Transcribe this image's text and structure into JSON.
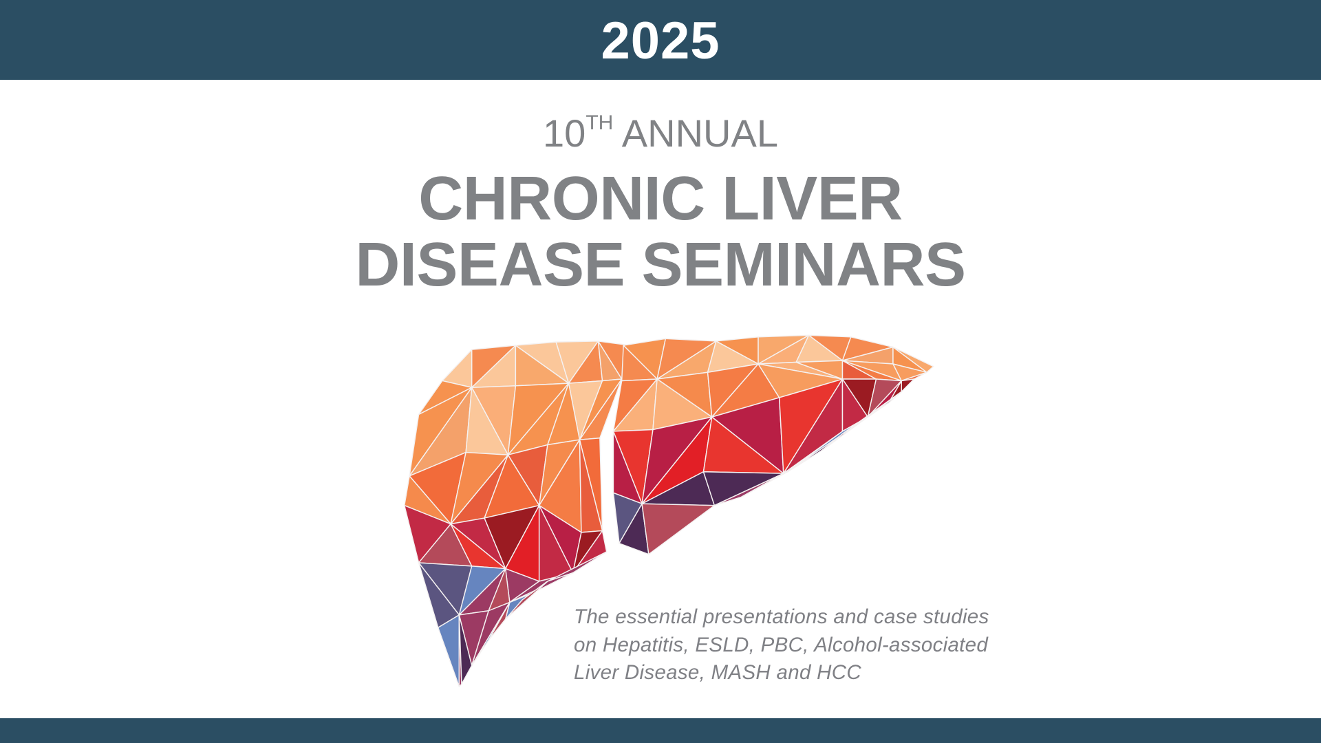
{
  "header": {
    "year": "2025"
  },
  "title": {
    "edition_number": "10",
    "edition_suffix": "TH",
    "edition_word": "ANNUAL",
    "line1": "CHRONIC LIVER",
    "line2": "DISEASE SEMINARS"
  },
  "illustration": {
    "icon": "low-poly-liver-icon"
  },
  "description": {
    "lines": [
      "The essential presentations and case studies",
      "on Hepatitis, ESLD, PBC, Alcohol-associated",
      "Liver Disease, MASH and HCC"
    ]
  },
  "colors": {
    "bar": "#2b4e63",
    "text_gray": "#808285",
    "background": "#ffffff"
  }
}
